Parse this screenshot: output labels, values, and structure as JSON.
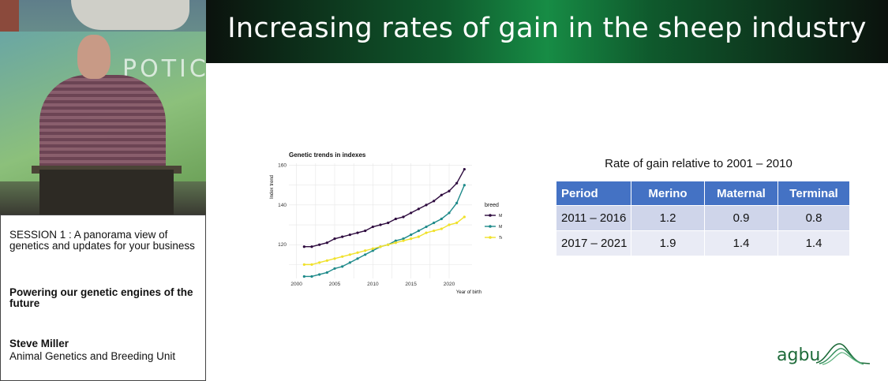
{
  "video": {
    "banner_text": "POTICS"
  },
  "session": {
    "line1": "SESSION 1 : A panorama view of genetics and updates for your business",
    "line2": "Powering our genetic engines of the future",
    "speaker": "Steve Miller",
    "affiliation": "Animal Genetics and Breeding Unit"
  },
  "slide": {
    "title": "Increasing rates of gain in the sheep industry",
    "logo_text": "agbu"
  },
  "chart_data": {
    "type": "line",
    "title": "Genetic trends in indexes",
    "xlabel": "Year of birth",
    "ylabel": "Index trend",
    "xlim": [
      1999,
      2023
    ],
    "ylim": [
      103,
      161
    ],
    "xticks": [
      2000,
      2005,
      2010,
      2015,
      2020
    ],
    "yticks": [
      120,
      140,
      160
    ],
    "legend_title": "breed",
    "x": [
      2001,
      2002,
      2003,
      2004,
      2005,
      2006,
      2007,
      2008,
      2009,
      2010,
      2011,
      2012,
      2013,
      2014,
      2015,
      2016,
      2017,
      2018,
      2019,
      2020,
      2021,
      2022
    ],
    "series": [
      {
        "name": "Merino",
        "color": "#2d0a3e",
        "values": [
          119,
          119,
          120,
          121,
          123,
          124,
          125,
          126,
          127,
          129,
          130,
          131,
          133,
          134,
          136,
          138,
          140,
          142,
          145,
          147,
          151,
          158
        ]
      },
      {
        "name": "Maternal",
        "color": "#1e8a8a",
        "values": [
          104,
          104,
          105,
          106,
          108,
          109,
          111,
          113,
          115,
          117,
          119,
          120,
          122,
          123,
          125,
          127,
          129,
          131,
          133,
          136,
          141,
          150
        ]
      },
      {
        "name": "Terminal",
        "color": "#f0e12a",
        "values": [
          110,
          110,
          111,
          112,
          113,
          114,
          115,
          116,
          117,
          118,
          119,
          120,
          121,
          122,
          123,
          124,
          126,
          127,
          128,
          130,
          131,
          134
        ]
      }
    ]
  },
  "table": {
    "caption": "Rate of gain relative to 2001 – 2010",
    "headers": [
      "Period",
      "Merino",
      "Maternal",
      "Terminal"
    ],
    "rows": [
      [
        "2011 – 2016",
        "1.2",
        "0.9",
        "0.8"
      ],
      [
        "2017 – 2021",
        "1.9",
        "1.4",
        "1.4"
      ]
    ]
  }
}
